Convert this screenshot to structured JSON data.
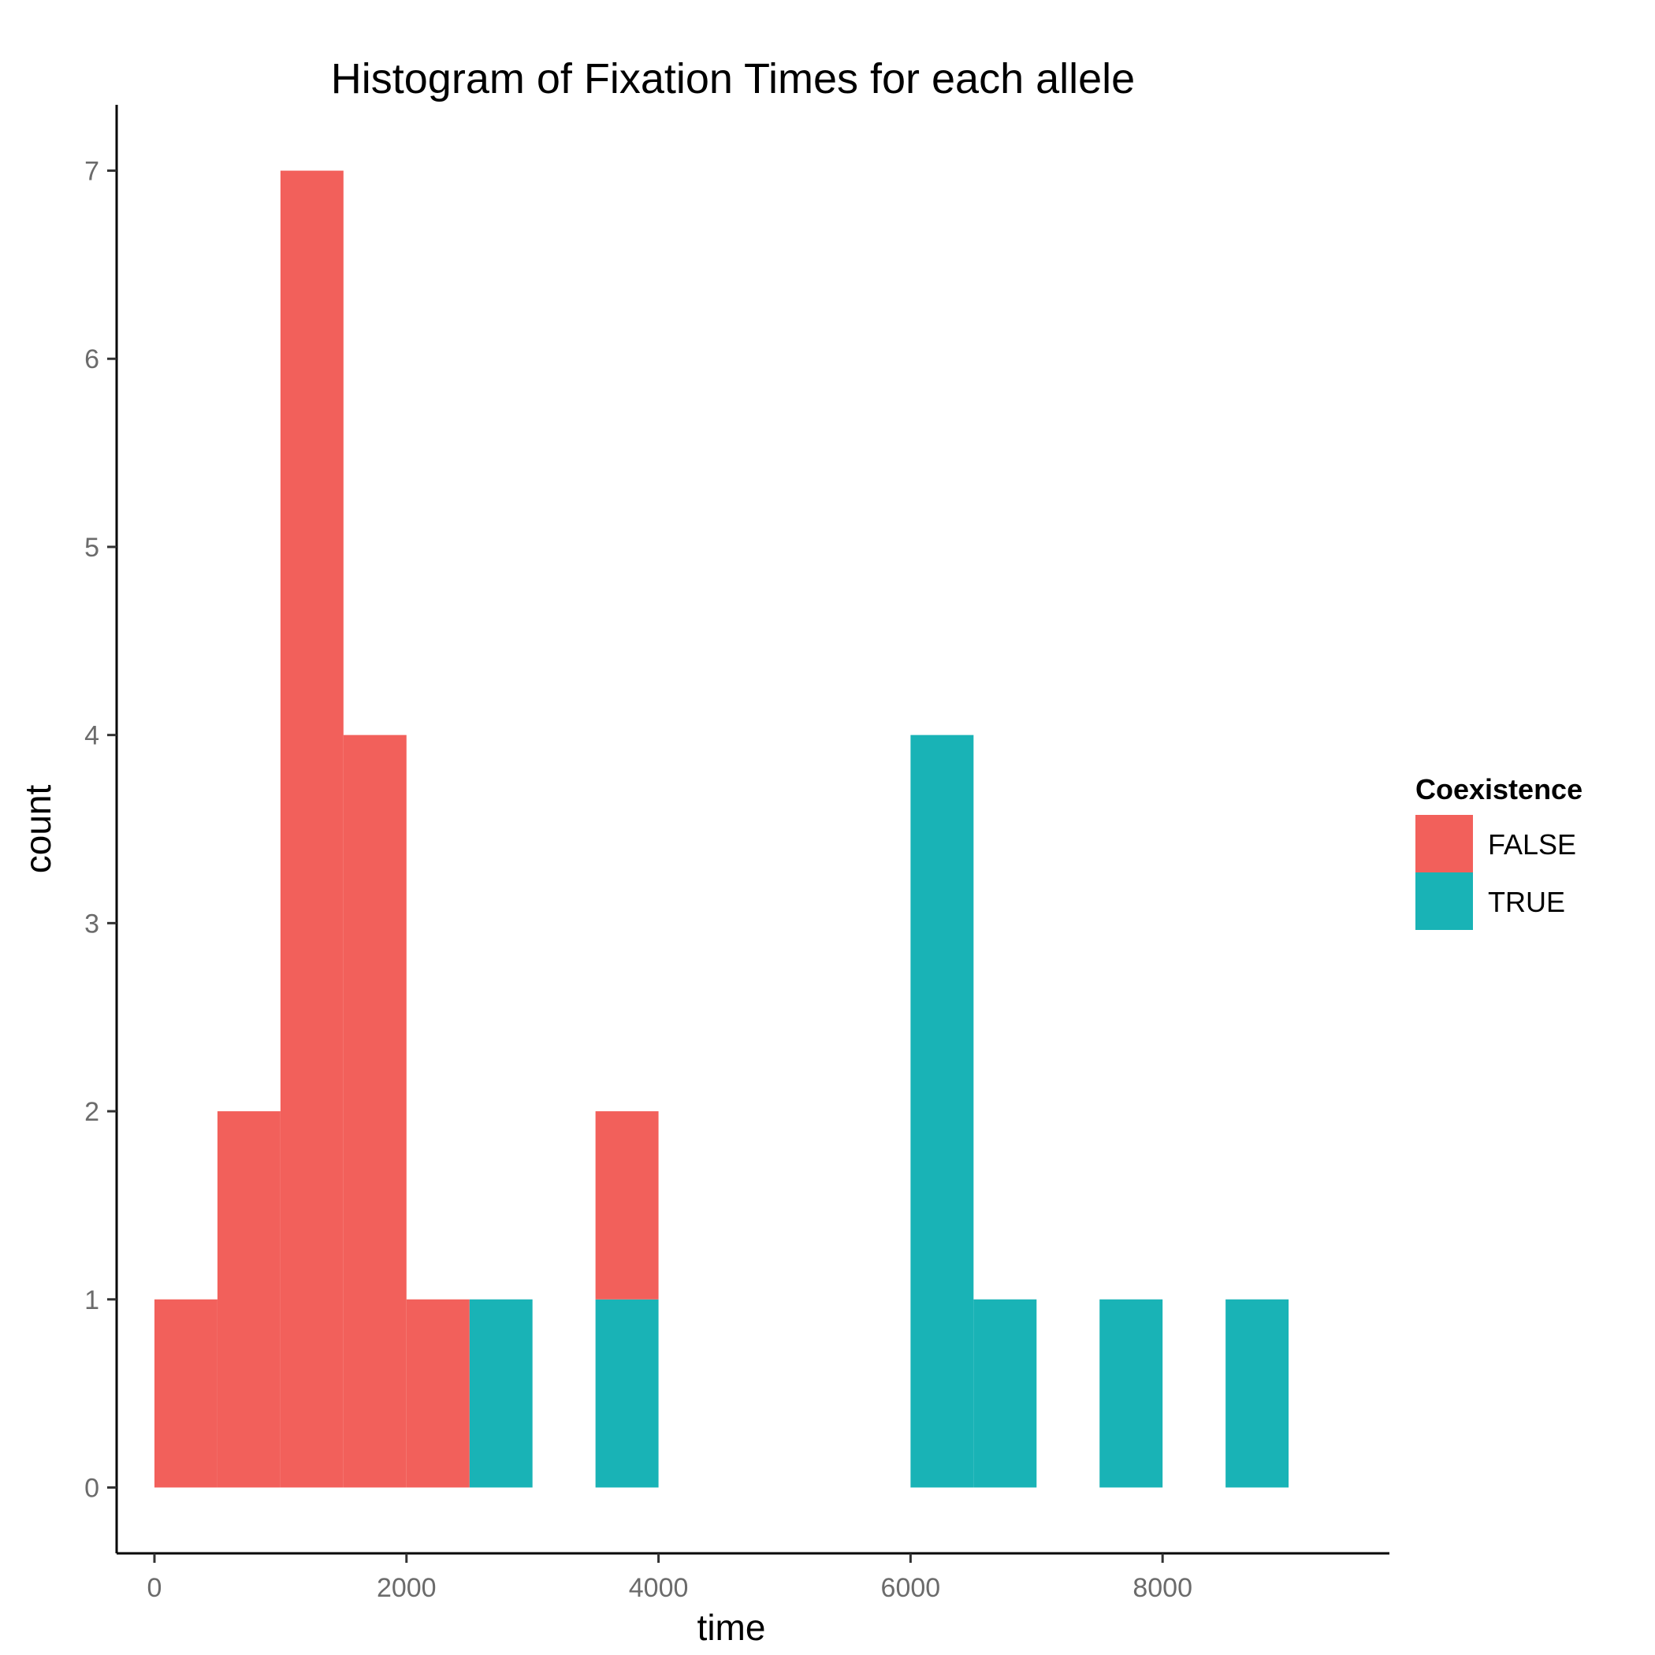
{
  "chart_data": {
    "type": "bar",
    "subtype": "stacked-histogram",
    "title": "Histogram of Fixation Times for each allele",
    "xlabel": "time",
    "ylabel": "count",
    "bin_width": 500,
    "xlim": [
      -300,
      9800
    ],
    "ylim": [
      -0.35,
      7.35
    ],
    "x_ticks": [
      0,
      2000,
      4000,
      6000,
      8000
    ],
    "x_tick_labels": [
      "0",
      "2000",
      "4000",
      "6000",
      "8000"
    ],
    "y_ticks": [
      0,
      1,
      2,
      3,
      4,
      5,
      6,
      7
    ],
    "y_tick_labels": [
      "0",
      "1",
      "2",
      "3",
      "4",
      "5",
      "6",
      "7"
    ],
    "grid": false,
    "legend": {
      "title": "Coexistence",
      "placement": "right",
      "entries": [
        {
          "label": "FALSE",
          "color": "#F2605B"
        },
        {
          "label": "TRUE",
          "color": "#19B3B6"
        }
      ]
    },
    "series": [
      {
        "name": "FALSE",
        "color": "#F2605B",
        "bins": [
          {
            "x0": 0,
            "x1": 500,
            "count": 1
          },
          {
            "x0": 500,
            "x1": 1000,
            "count": 2
          },
          {
            "x0": 1000,
            "x1": 1500,
            "count": 7
          },
          {
            "x0": 1500,
            "x1": 2000,
            "count": 4
          },
          {
            "x0": 2000,
            "x1": 2500,
            "count": 1
          },
          {
            "x0": 3500,
            "x1": 4000,
            "count": 1
          }
        ]
      },
      {
        "name": "TRUE",
        "color": "#19B3B6",
        "bins": [
          {
            "x0": 2500,
            "x1": 3000,
            "count": 1
          },
          {
            "x0": 3500,
            "x1": 4000,
            "count": 1
          },
          {
            "x0": 6000,
            "x1": 6500,
            "count": 4
          },
          {
            "x0": 6500,
            "x1": 7000,
            "count": 1
          },
          {
            "x0": 7500,
            "x1": 8000,
            "count": 1
          },
          {
            "x0": 8500,
            "x1": 9000,
            "count": 1
          }
        ]
      }
    ]
  }
}
